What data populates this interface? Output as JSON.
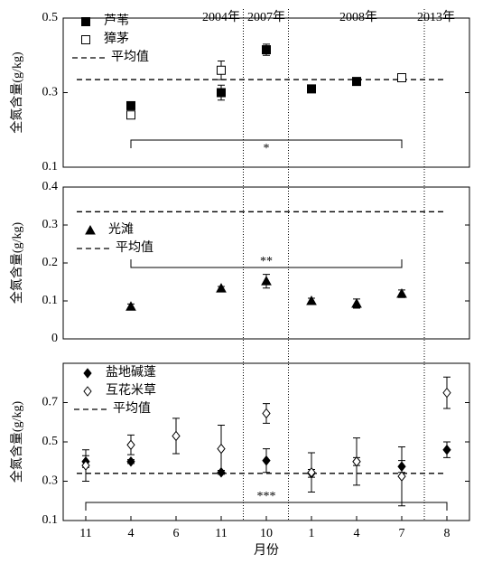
{
  "chart_data": [
    {
      "type": "scatter",
      "ylabel": "全氮含量(g/kg)",
      "ylim": [
        0.1,
        0.5
      ],
      "yticks": [
        0.1,
        0.3,
        0.5
      ],
      "annotations": [
        "2004年",
        "2007年",
        "2008年",
        "2013年"
      ],
      "series": [
        {
          "name": "芦苇",
          "color": "#000000",
          "marker": "square",
          "filled": true,
          "values": [
            null,
            0.265,
            null,
            0.3,
            0.415,
            0.31,
            0.33,
            0.34,
            null
          ],
          "errors": [
            null,
            0.01,
            null,
            0.02,
            0.015,
            0.005,
            0.01,
            0.01,
            null
          ]
        },
        {
          "name": "獐茅",
          "color": "#000000",
          "marker": "square",
          "filled": false,
          "values": [
            null,
            0.24,
            null,
            0.36,
            null,
            null,
            null,
            0.34,
            null
          ],
          "errors": [
            null,
            0.005,
            null,
            0.025,
            null,
            null,
            null,
            0.01,
            null
          ]
        }
      ],
      "mean_line": {
        "name": "平均值",
        "value": 0.335
      },
      "significance": "*"
    },
    {
      "type": "scatter",
      "ylabel": "全氮含量(g/kg)",
      "ylim": [
        0,
        0.4
      ],
      "yticks": [
        0,
        0.1,
        0.2,
        0.3,
        0.4
      ],
      "series": [
        {
          "name": "光滩",
          "color": "#000000",
          "marker": "triangle",
          "filled": true,
          "values": [
            null,
            0.085,
            null,
            0.133,
            0.152,
            0.1,
            0.093,
            0.119,
            null
          ],
          "errors": [
            null,
            0.007,
            null,
            0.005,
            0.018,
            0.007,
            0.012,
            0.01,
            null
          ]
        }
      ],
      "mean_line": {
        "name": "平均值",
        "value": 0.335
      },
      "significance": "**"
    },
    {
      "type": "scatter",
      "ylabel": "全氮含量(g/kg)",
      "xlabel": "月份",
      "categories": [
        "11",
        "4",
        "6",
        "11",
        "10",
        "1",
        "4",
        "7",
        "8"
      ],
      "ylim": [
        0.1,
        0.9
      ],
      "yticks": [
        0.1,
        0.3,
        0.5,
        0.7
      ],
      "series": [
        {
          "name": "盐地碱蓬",
          "color": "#000000",
          "marker": "diamond",
          "filled": true,
          "values": [
            0.4,
            0.4,
            null,
            0.345,
            0.405,
            0.34,
            0.4,
            0.375,
            0.46
          ],
          "errors": [
            0.03,
            0.01,
            null,
            0.01,
            0.06,
            0.02,
            0.02,
            0.03,
            0.04
          ]
        },
        {
          "name": "互花米草",
          "color": "#000000",
          "marker": "diamond",
          "filled": false,
          "values": [
            0.38,
            0.485,
            0.53,
            0.465,
            0.645,
            0.345,
            0.4,
            0.325,
            0.75
          ],
          "errors": [
            0.08,
            0.05,
            0.09,
            0.12,
            0.05,
            0.1,
            0.12,
            0.15,
            0.08
          ]
        }
      ],
      "mean_line": {
        "name": "平均值",
        "value": 0.34
      },
      "significance": "***"
    }
  ]
}
